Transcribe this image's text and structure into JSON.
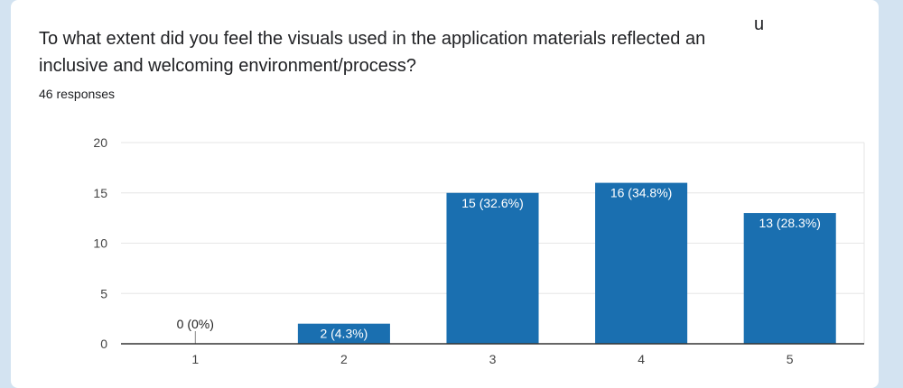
{
  "question": {
    "title": "To what extent did you feel the visuals used in the application materials reflected an inclusive and welcoming environment/process?",
    "stray_text": "u",
    "responses": "46 responses"
  },
  "colors": {
    "bar": "#1a6fb0",
    "grid": "#e6e6e6",
    "axis": "#333333",
    "label_inside": "#ffffff",
    "label_outside": "#222222"
  },
  "chart_data": {
    "type": "bar",
    "categories": [
      "1",
      "2",
      "3",
      "4",
      "5"
    ],
    "values": [
      0,
      2,
      15,
      16,
      13
    ],
    "data_labels": [
      "0 (0%)",
      "2 (4.3%)",
      "15 (32.6%)",
      "16 (34.8%)",
      "13 (28.3%)"
    ],
    "yticks": [
      "0",
      "5",
      "10",
      "15",
      "20"
    ],
    "ylim": [
      0,
      20
    ],
    "grid": true
  }
}
